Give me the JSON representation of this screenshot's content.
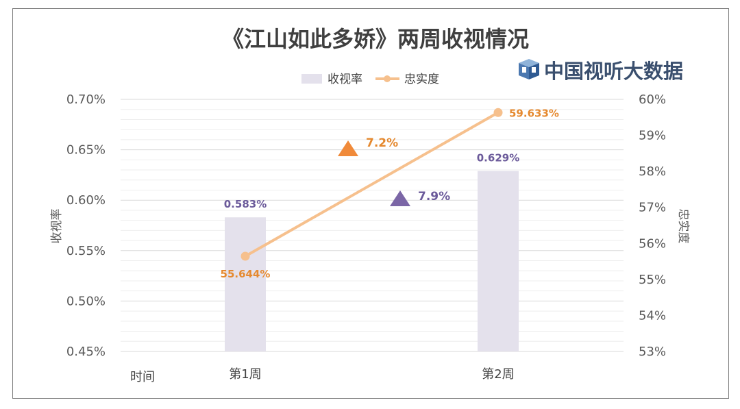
{
  "chart_data": {
    "type": "bar+line",
    "title": "《江山如此多娇》两周收视情况",
    "brand": "中国视听大数据",
    "xlabel": "时间",
    "categories": [
      "第1周",
      "第2周"
    ],
    "series": [
      {
        "name": "收视率",
        "type": "bar",
        "axis": "left",
        "values": [
          0.583,
          0.629
        ],
        "labels": [
          "0.583%",
          "0.629%"
        ],
        "color": "#e4e1ec"
      },
      {
        "name": "忠实度",
        "type": "line",
        "axis": "right",
        "values": [
          55.644,
          59.633
        ],
        "labels": [
          "55.644%",
          "59.633%"
        ],
        "color": "#f6c08d"
      }
    ],
    "y_left": {
      "label": "收视率",
      "min": 0.45,
      "max": 0.7,
      "step": 0.05,
      "ticks": [
        "0.45%",
        "0.50%",
        "0.55%",
        "0.60%",
        "0.65%",
        "0.70%"
      ]
    },
    "y_right": {
      "label": "忠实度",
      "min": 53,
      "max": 60,
      "step": 1,
      "ticks": [
        "53%",
        "54%",
        "55%",
        "56%",
        "57%",
        "58%",
        "59%",
        "60%"
      ]
    },
    "annotations": [
      {
        "text": "7.2%",
        "icon": "triangle-up",
        "color": "#e5892f"
      },
      {
        "text": "7.9%",
        "icon": "triangle-up",
        "color": "#7b66a6"
      }
    ],
    "legend_position": "top-center",
    "grid": true
  }
}
